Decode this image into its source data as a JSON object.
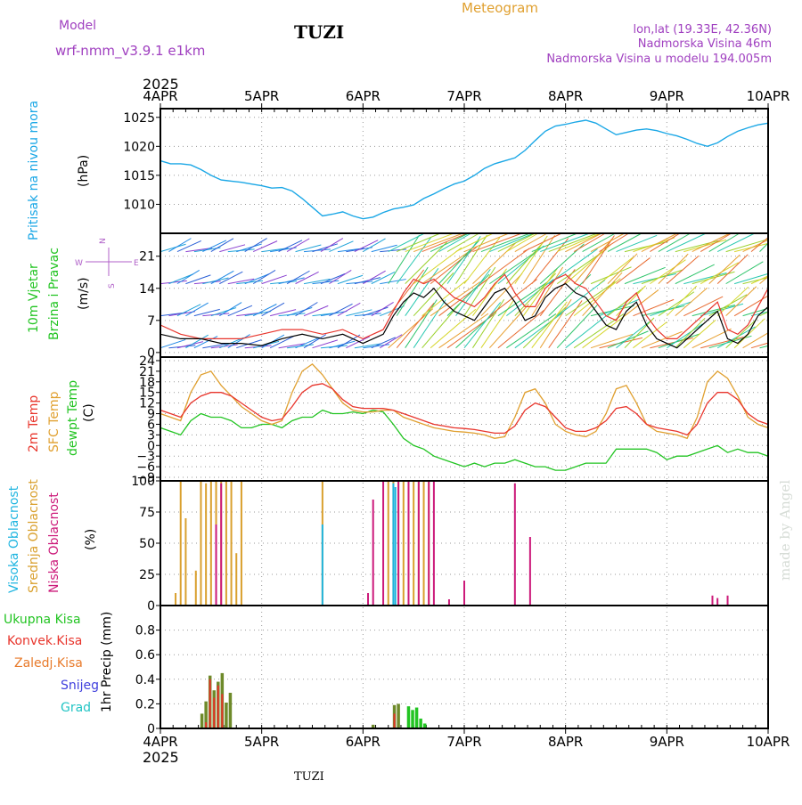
{
  "header": {
    "model_label": "Model",
    "model_name": "wrf-nmm_v3.9.1 e1km",
    "station": "TUZI",
    "product": "Meteogram",
    "lonlat": "lon,lat (19.33E, 42.36N)",
    "elevation": "Nadmorska Visina 46m",
    "model_elevation": "Nadmorska Visina u modelu 194.005m",
    "year_top": "2025",
    "year_bottom": "2025",
    "footer_station": "TUZI",
    "credit": "made by Angel"
  },
  "colors": {
    "pressure": "#1aa7e6",
    "wind_black": "#000000",
    "wind_red": "#e8352c",
    "temp2m": "#e8352c",
    "sfc": "#e0a030",
    "dewpt": "#22c422",
    "high_cloud": "#1fb5e0",
    "mid_cloud": "#d9a02e",
    "low_cloud": "#cc1a7a",
    "precip_total": "#22c422",
    "precip_conv": "#e8352c",
    "precip_grid": "#e87a2a",
    "snow": "#4040dd",
    "graupel": "#22c4c4",
    "model_color": "#a040c0",
    "title_meteo": "#e0a030"
  },
  "chart_data": [
    {
      "id": "pressure",
      "type": "line",
      "ylabel_1": "Pritisak na nivou mora",
      "ylabel_2": "(hPa)",
      "x_ticks": [
        "4APR",
        "5APR",
        "6APR",
        "7APR",
        "8APR",
        "9APR",
        "10APR"
      ],
      "ylim": [
        1005,
        1026.5
      ],
      "y_ticks": [
        "1010",
        "1015",
        "1020",
        "1025"
      ],
      "grid": true,
      "series": [
        {
          "x": [
            0,
            0.1,
            0.2,
            0.3,
            0.4,
            0.5,
            0.6,
            0.7,
            0.8,
            0.9,
            1.0,
            1.1,
            1.2,
            1.3,
            1.4,
            1.5,
            1.6,
            1.7,
            1.8,
            1.9,
            2.0,
            2.1,
            2.2,
            2.3,
            2.4,
            2.5,
            2.6,
            2.7,
            2.8,
            2.9,
            3.0,
            3.1,
            3.2,
            3.3,
            3.4,
            3.5,
            3.6,
            3.7,
            3.8,
            3.9,
            4.0,
            4.1,
            4.2,
            4.3,
            4.4,
            4.5,
            4.6,
            4.7,
            4.8,
            4.9,
            5.0,
            5.1,
            5.2,
            5.3,
            5.4,
            5.5,
            5.6,
            5.7,
            5.8,
            5.9,
            6.0
          ],
          "values": [
            1017.5,
            1017.0,
            1017.0,
            1016.8,
            1016.0,
            1015.0,
            1014.2,
            1014.0,
            1013.8,
            1013.5,
            1013.2,
            1012.8,
            1012.9,
            1012.3,
            1011.0,
            1009.5,
            1008.0,
            1008.3,
            1008.7,
            1008.0,
            1007.5,
            1007.8,
            1008.6,
            1009.2,
            1009.5,
            1009.9,
            1011.0,
            1011.8,
            1012.7,
            1013.5,
            1014.0,
            1015.0,
            1016.2,
            1017.0,
            1017.5,
            1018.0,
            1019.3,
            1021.0,
            1022.6,
            1023.5,
            1023.8,
            1024.2,
            1024.5,
            1024.0,
            1023.0,
            1022.0,
            1022.4,
            1022.8,
            1023.0,
            1022.7,
            1022.2,
            1021.8,
            1021.2,
            1020.5,
            1020.0,
            1020.6,
            1021.7,
            1022.6,
            1023.2,
            1023.7,
            1024.0
          ]
        }
      ]
    },
    {
      "id": "wind",
      "type": "line",
      "ylabel_1": "10m Vjetar",
      "ylabel_2": "Brzina i Pravac",
      "ylabel_3": "(m/s)",
      "compass": [
        "N",
        "E",
        "S",
        "W"
      ],
      "ylim": [
        -1,
        26
      ],
      "y_ticks": [
        "0",
        "7",
        "14",
        "21"
      ],
      "grid": true,
      "series": [
        {
          "name": "speed",
          "x": [
            0,
            0.2,
            0.4,
            0.6,
            0.8,
            1.0,
            1.2,
            1.4,
            1.6,
            1.8,
            2.0,
            2.2,
            2.3,
            2.4,
            2.5,
            2.6,
            2.7,
            2.8,
            2.9,
            3.0,
            3.1,
            3.2,
            3.3,
            3.4,
            3.5,
            3.6,
            3.7,
            3.8,
            3.9,
            4.0,
            4.1,
            4.2,
            4.3,
            4.4,
            4.5,
            4.6,
            4.7,
            4.8,
            4.9,
            5.0,
            5.1,
            5.2,
            5.3,
            5.4,
            5.5,
            5.6,
            5.7,
            5.8,
            5.9,
            6.0
          ],
          "values": [
            4,
            3,
            3,
            2,
            2,
            1.5,
            3,
            4,
            3,
            4,
            2,
            4,
            8,
            11,
            13,
            12,
            14,
            11,
            9,
            8,
            7,
            10,
            13,
            14,
            11,
            7,
            8,
            12,
            14,
            15,
            13,
            12,
            9,
            6,
            5,
            9,
            11,
            6,
            3,
            2,
            1,
            3,
            5,
            7,
            9,
            3,
            2,
            4,
            8,
            10
          ]
        },
        {
          "name": "gust",
          "x": [
            0,
            0.2,
            0.4,
            0.6,
            0.8,
            1.0,
            1.2,
            1.4,
            1.6,
            1.8,
            2.0,
            2.2,
            2.3,
            2.4,
            2.5,
            2.6,
            2.7,
            2.8,
            2.9,
            3.0,
            3.1,
            3.2,
            3.3,
            3.4,
            3.5,
            3.6,
            3.7,
            3.8,
            3.9,
            4.0,
            4.1,
            4.2,
            4.3,
            4.4,
            4.5,
            4.6,
            4.7,
            4.8,
            4.9,
            5.0,
            5.1,
            5.2,
            5.3,
            5.4,
            5.5,
            5.6,
            5.7,
            5.8,
            5.9,
            6.0
          ],
          "values": [
            6,
            4,
            3,
            3,
            3,
            4,
            5,
            5,
            4,
            5,
            3,
            5,
            9,
            13,
            16,
            15,
            16,
            14,
            12,
            11,
            10,
            12,
            15,
            17,
            13,
            10,
            10,
            14,
            16,
            17,
            15,
            14,
            11,
            8,
            7,
            11,
            13,
            8,
            5,
            3,
            3,
            5,
            7,
            9,
            11,
            5,
            4,
            6,
            10,
            14
          ]
        }
      ]
    },
    {
      "id": "temperature",
      "type": "line",
      "ylabel_1": "2m Temp",
      "ylabel_2": "SFC Temp",
      "ylabel_3": "dewpt Temp",
      "ylabel_4": "(C)",
      "ylim": [
        -10,
        25
      ],
      "y_ticks": [
        "24",
        "21",
        "18",
        "15",
        "12",
        "9",
        "6",
        "3",
        "0",
        "−3",
        "−6",
        "−9"
      ],
      "grid": true,
      "series": [
        {
          "name": "2m Temp",
          "x": [
            0,
            0.1,
            0.2,
            0.3,
            0.4,
            0.5,
            0.6,
            0.7,
            0.8,
            0.9,
            1.0,
            1.1,
            1.2,
            1.3,
            1.4,
            1.5,
            1.6,
            1.7,
            1.8,
            1.9,
            2.0,
            2.1,
            2.2,
            2.3,
            2.4,
            2.5,
            2.6,
            2.7,
            2.8,
            2.9,
            3.0,
            3.1,
            3.2,
            3.3,
            3.4,
            3.5,
            3.6,
            3.7,
            3.8,
            3.9,
            4.0,
            4.1,
            4.2,
            4.3,
            4.4,
            4.5,
            4.6,
            4.7,
            4.8,
            4.9,
            5.0,
            5.1,
            5.2,
            5.3,
            5.4,
            5.5,
            5.6,
            5.7,
            5.8,
            5.9,
            6.0
          ],
          "values": [
            10,
            9,
            8,
            12,
            14,
            15,
            15,
            14,
            12,
            10,
            8,
            7,
            7.5,
            11,
            15,
            17,
            17.5,
            16,
            13,
            11,
            10.5,
            10.5,
            10.5,
            10,
            9,
            8,
            7,
            6,
            5.5,
            5,
            4.8,
            4.5,
            4,
            3.5,
            3.5,
            5.5,
            10,
            12,
            11,
            8,
            5,
            4,
            4,
            5,
            7,
            10.5,
            11,
            9,
            6,
            5,
            4.5,
            4,
            3,
            6,
            12,
            15,
            15,
            13,
            9,
            7,
            6
          ]
        },
        {
          "name": "SFC Temp",
          "x": [
            0,
            0.1,
            0.2,
            0.3,
            0.4,
            0.5,
            0.6,
            0.7,
            0.8,
            0.9,
            1.0,
            1.1,
            1.2,
            1.3,
            1.4,
            1.5,
            1.6,
            1.7,
            1.8,
            1.9,
            2.0,
            2.1,
            2.2,
            2.3,
            2.4,
            2.5,
            2.6,
            2.7,
            2.8,
            2.9,
            3.0,
            3.1,
            3.2,
            3.3,
            3.4,
            3.5,
            3.6,
            3.7,
            3.8,
            3.9,
            4.0,
            4.1,
            4.2,
            4.3,
            4.4,
            4.5,
            4.6,
            4.7,
            4.8,
            4.9,
            5.0,
            5.1,
            5.2,
            5.3,
            5.4,
            5.5,
            5.6,
            5.7,
            5.8,
            5.9,
            6.0
          ],
          "values": [
            9,
            8,
            7,
            15,
            20,
            21,
            17,
            14,
            11,
            9,
            7,
            6,
            7,
            15,
            21,
            23,
            20,
            16,
            12,
            10,
            9.5,
            9.5,
            10,
            10,
            8,
            7,
            6,
            5,
            4.5,
            4,
            3.8,
            3.5,
            3,
            2,
            2.5,
            8,
            15,
            16,
            12,
            6,
            4,
            3,
            2.5,
            4,
            9,
            16,
            17,
            12,
            6,
            4,
            3.5,
            3,
            2,
            8,
            18,
            21,
            19,
            14,
            8,
            6,
            5
          ]
        },
        {
          "name": "dewpt Temp",
          "x": [
            0,
            0.1,
            0.2,
            0.3,
            0.4,
            0.5,
            0.6,
            0.7,
            0.8,
            0.9,
            1.0,
            1.1,
            1.2,
            1.3,
            1.4,
            1.5,
            1.6,
            1.7,
            1.8,
            1.9,
            2.0,
            2.1,
            2.2,
            2.3,
            2.4,
            2.5,
            2.6,
            2.7,
            2.8,
            2.9,
            3.0,
            3.1,
            3.2,
            3.3,
            3.4,
            3.5,
            3.6,
            3.7,
            3.8,
            3.9,
            4.0,
            4.1,
            4.2,
            4.3,
            4.4,
            4.5,
            4.6,
            4.7,
            4.8,
            4.9,
            5.0,
            5.1,
            5.2,
            5.3,
            5.4,
            5.5,
            5.6,
            5.7,
            5.8,
            5.9,
            6.0
          ],
          "values": [
            5,
            4,
            3,
            7,
            9,
            8,
            8,
            7,
            5,
            5,
            6,
            6,
            5,
            7,
            8,
            8,
            10,
            9,
            9,
            9.5,
            9,
            10,
            9.5,
            6,
            2,
            0,
            -1,
            -3,
            -4,
            -5,
            -6,
            -5,
            -6,
            -5,
            -5,
            -4,
            -5,
            -6,
            -6,
            -7,
            -7,
            -6,
            -5,
            -5,
            -5,
            -1,
            -1,
            -1,
            -1,
            -2,
            -4,
            -3,
            -3,
            -2,
            -1,
            0,
            -2,
            -1,
            -2,
            -2,
            -3
          ]
        }
      ]
    },
    {
      "id": "clouds",
      "type": "bar",
      "ylabel_1": "Visoka Oblacnost",
      "ylabel_2": "Srednja Oblacnost",
      "ylabel_3": "Niska Oblacnost",
      "ylabel_4": "(%)",
      "ylim": [
        0,
        100
      ],
      "y_ticks": [
        "0",
        "25",
        "50",
        "75",
        "100"
      ],
      "grid": true,
      "series": [
        {
          "name": "mid",
          "x": [
            0.15,
            0.2,
            0.25,
            0.35,
            0.4,
            0.45,
            0.5,
            0.55,
            0.6,
            0.65,
            0.7,
            0.75,
            0.8,
            1.6,
            2.25,
            2.3,
            2.35,
            2.4,
            2.45,
            2.5,
            2.55,
            2.6,
            2.65
          ],
          "values": [
            10,
            100,
            70,
            28,
            100,
            98,
            100,
            100,
            100,
            100,
            100,
            42,
            100,
            100,
            100,
            100,
            100,
            100,
            100,
            100,
            100,
            100,
            100
          ]
        },
        {
          "name": "high",
          "x": [
            1.6,
            2.3,
            2.32
          ],
          "values": [
            65,
            98,
            95
          ]
        },
        {
          "name": "low",
          "x": [
            0.55,
            0.6,
            2.05,
            2.1,
            2.2,
            2.35,
            2.45,
            2.55,
            2.65,
            2.7,
            2.85,
            3.0,
            3.5,
            3.65,
            5.45,
            5.5,
            5.6
          ],
          "values": [
            65,
            98,
            10,
            85,
            100,
            100,
            100,
            100,
            100,
            100,
            5,
            20,
            98,
            55,
            8,
            6,
            8
          ]
        }
      ]
    },
    {
      "id": "precip",
      "type": "bar",
      "legend": [
        "Ukupna Kisa",
        "Konvek.Kisa",
        "Zaledj.Kisa",
        "Snijeg",
        "Grad"
      ],
      "ylabel": "1hr Precip (mm)",
      "x_ticks": [
        "4APR",
        "5APR",
        "6APR",
        "7APR",
        "8APR",
        "9APR",
        "10APR"
      ],
      "ylim": [
        0,
        1.0
      ],
      "y_ticks": [
        "0",
        "0.2",
        "0.4",
        "0.6",
        "0.8"
      ],
      "grid": true,
      "series": [
        {
          "name": "Ukupna Kisa",
          "x": [
            0.41,
            0.45,
            0.49,
            0.53,
            0.57,
            0.61,
            0.65,
            0.69,
            2.1,
            2.31,
            2.35,
            2.45,
            2.49,
            2.53,
            2.57,
            2.61
          ],
          "values": [
            0.12,
            0.22,
            0.43,
            0.31,
            0.38,
            0.45,
            0.21,
            0.29,
            0.03,
            0.19,
            0.2,
            0.18,
            0.15,
            0.17,
            0.08,
            0.04
          ]
        },
        {
          "name": "Konvek.Kisa",
          "x": [
            0.45,
            0.49,
            0.53,
            0.57,
            0.61,
            2.31
          ],
          "values": [
            0.05,
            0.4,
            0.25,
            0.35,
            0.28,
            0.12
          ]
        }
      ]
    }
  ]
}
